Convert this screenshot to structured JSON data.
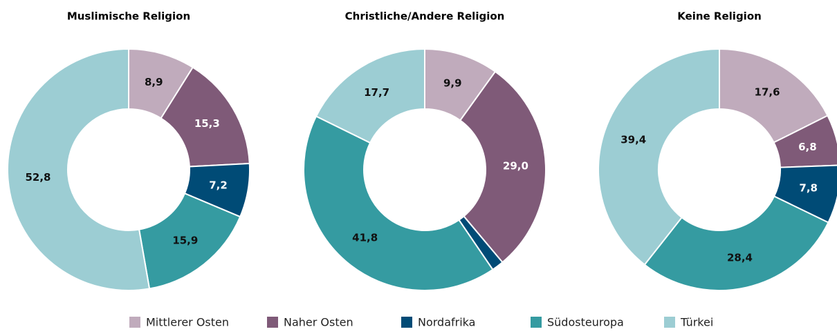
{
  "chart_data": [
    {
      "type": "pie",
      "title": "Muslimische Religion",
      "categories": [
        "Mittlerer Osten",
        "Naher Osten",
        "Nordafrika",
        "Südosteuropa",
        "Türkei"
      ],
      "values": [
        8.9,
        15.3,
        7.2,
        15.9,
        52.8
      ],
      "value_labels": [
        "8,9",
        "15,3",
        "7,2",
        "15,9",
        "52,8"
      ],
      "colors": [
        "#c0abbc",
        "#7f5a78",
        "#004b76",
        "#359ba1",
        "#9ccdd3"
      ]
    },
    {
      "type": "pie",
      "title": "Christliche/Andere Religion",
      "categories": [
        "Mittlerer Osten",
        "Naher Osten",
        "Nordafrika",
        "Südosteuropa",
        "Türkei"
      ],
      "values": [
        9.9,
        29.0,
        1.6,
        41.8,
        17.7
      ],
      "value_labels": [
        "9,9",
        "29,0",
        null,
        "41,8",
        "17,7"
      ],
      "colors": [
        "#c0abbc",
        "#7f5a78",
        "#004b76",
        "#359ba1",
        "#9ccdd3"
      ]
    },
    {
      "type": "pie",
      "title": "Keine Religion",
      "categories": [
        "Mittlerer Osten",
        "Naher Osten",
        "Nordafrika",
        "Südosteuropa",
        "Türkei"
      ],
      "values": [
        17.6,
        6.8,
        7.8,
        28.4,
        39.4
      ],
      "value_labels": [
        "17,6",
        "6,8",
        "7,8",
        "28,4",
        "39,4"
      ],
      "colors": [
        "#c0abbc",
        "#7f5a78",
        "#004b76",
        "#359ba1",
        "#9ccdd3"
      ]
    }
  ]
}
